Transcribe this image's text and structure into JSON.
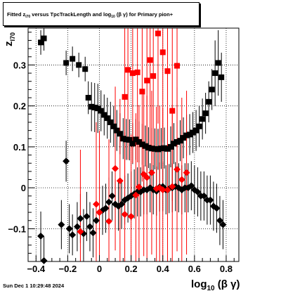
{
  "title": {
    "part1": "Fitted  z",
    "sub1": "I70",
    "part2": " versus TpcTrackLength and log",
    "sub2": "10",
    "part3": " (β  γ) for Primary pion+"
  },
  "footer": "Sun Dec  1 10:29:48 2024",
  "chart_data": {
    "type": "scatter",
    "xlabel_main": "log",
    "xlabel_sub": "10",
    "xlabel_tail": " (β γ)",
    "ylabel_main": "z",
    "ylabel_sub": "I70",
    "xlim": [
      -0.45,
      0.88
    ],
    "ylim": [
      -0.18,
      0.39
    ],
    "x_ticks": [
      -0.4,
      -0.2,
      0,
      0.2,
      0.4,
      0.6,
      0.8
    ],
    "x_tick_labels": [
      "−0.4",
      "−0.2",
      "0",
      "0.2",
      "0.4",
      "0.6",
      "0.8"
    ],
    "y_ticks": [
      -0.1,
      0,
      0.1,
      0.2,
      0.3
    ],
    "y_tick_labels": [
      "−0.1",
      "0",
      "0.1",
      "0.2",
      "0.3"
    ],
    "grid": true,
    "colors": {
      "primary": "#000000",
      "secondary": "#ff0000"
    },
    "series": [
      {
        "marker": "square",
        "color": "#000000",
        "x": [
          -0.37,
          -0.35,
          -0.21,
          -0.17,
          -0.13,
          -0.09,
          -0.07,
          -0.05,
          -0.03,
          -0.01,
          0.01,
          0.03,
          0.05,
          0.07,
          0.09,
          0.11,
          0.13,
          0.15,
          0.17,
          0.19,
          0.21,
          0.23,
          0.25,
          0.27,
          0.29,
          0.31,
          0.33,
          0.35,
          0.37,
          0.39,
          0.41,
          0.43,
          0.45,
          0.47,
          0.49,
          0.51,
          0.53,
          0.55,
          0.57,
          0.59,
          0.61,
          0.63,
          0.65,
          0.67,
          0.69,
          0.71,
          0.73,
          0.75,
          0.77
        ],
        "y": [
          0.355,
          0.365,
          0.305,
          0.315,
          0.3,
          0.29,
          0.22,
          0.198,
          0.196,
          0.194,
          0.188,
          0.178,
          0.17,
          0.16,
          0.15,
          0.14,
          0.132,
          0.12,
          0.118,
          0.117,
          0.108,
          0.118,
          0.112,
          0.106,
          0.102,
          0.098,
          0.096,
          0.095,
          0.094,
          0.096,
          0.097,
          0.095,
          0.1,
          0.108,
          0.112,
          0.115,
          0.122,
          0.128,
          0.13,
          0.135,
          0.14,
          0.15,
          0.168,
          0.182,
          0.21,
          0.24,
          0.28,
          0.305,
          0.27
        ],
        "yerr": [
          0.03,
          0.03,
          0.03,
          0.03,
          0.03,
          0.03,
          0.04,
          0.06,
          0.06,
          0.06,
          0.05,
          0.05,
          0.05,
          0.05,
          0.05,
          0.05,
          0.05,
          0.05,
          0.05,
          0.05,
          0.05,
          0.05,
          0.05,
          0.05,
          0.05,
          0.05,
          0.05,
          0.05,
          0.05,
          0.05,
          0.05,
          0.05,
          0.05,
          0.05,
          0.05,
          0.05,
          0.05,
          0.05,
          0.05,
          0.05,
          0.05,
          0.05,
          0.05,
          0.05,
          0.05,
          0.05,
          0.08,
          0.08,
          0.06
        ]
      },
      {
        "marker": "square",
        "color": "#ff0000",
        "x": [
          0.16,
          0.18,
          0.21,
          0.24,
          0.27,
          0.3,
          0.32,
          0.34,
          0.37,
          0.4,
          0.43,
          0.46,
          0.49
        ],
        "y": [
          0.222,
          0.288,
          0.28,
          0.282,
          0.235,
          0.262,
          0.312,
          0.273,
          0.377,
          0.331,
          0.285,
          0.188,
          0.298
        ],
        "yerr": [
          0.22,
          0.22,
          0.22,
          0.22,
          0.22,
          0.22,
          0.22,
          0.22,
          0.22,
          0.22,
          0.22,
          0.22,
          0.22
        ]
      },
      {
        "marker": "diamond",
        "color": "#000000",
        "x": [
          -0.37,
          -0.35,
          -0.24,
          -0.21,
          -0.19,
          -0.17,
          -0.14,
          -0.12,
          -0.1,
          -0.08,
          -0.06,
          -0.04,
          -0.02,
          0.0,
          0.02,
          0.04,
          0.06,
          0.08,
          0.1,
          0.12,
          0.14,
          0.16,
          0.18,
          0.2,
          0.22,
          0.24,
          0.26,
          0.28,
          0.3,
          0.32,
          0.34,
          0.36,
          0.38,
          0.4,
          0.42,
          0.44,
          0.46,
          0.48,
          0.5,
          0.52,
          0.54,
          0.56,
          0.58,
          0.6,
          0.62,
          0.64,
          0.66,
          0.68,
          0.7,
          0.72,
          0.74,
          0.76,
          0.78
        ],
        "y": [
          -0.118,
          -0.178,
          -0.09,
          0.065,
          -0.1,
          -0.115,
          -0.095,
          -0.075,
          -0.112,
          -0.07,
          -0.095,
          -0.11,
          -0.08,
          -0.06,
          -0.055,
          -0.05,
          -0.035,
          -0.02,
          -0.04,
          -0.045,
          -0.04,
          -0.03,
          -0.025,
          -0.02,
          -0.015,
          -0.01,
          -0.01,
          -0.005,
          -0.005,
          0.0,
          -0.005,
          -0.008,
          0.002,
          0.003,
          -0.005,
          -0.002,
          0.0,
          0.003,
          0.0,
          -0.005,
          0.0,
          0.0,
          0.005,
          -0.005,
          -0.01,
          -0.02,
          -0.02,
          -0.03,
          -0.03,
          -0.045,
          -0.05,
          -0.08,
          -0.09
        ],
        "yerr": [
          0.06,
          0.06,
          0.06,
          0.05,
          0.06,
          0.05,
          0.06,
          0.06,
          0.06,
          0.06,
          0.06,
          0.06,
          0.06,
          0.06,
          0.06,
          0.06,
          0.06,
          0.06,
          0.06,
          0.06,
          0.06,
          0.06,
          0.06,
          0.06,
          0.06,
          0.06,
          0.06,
          0.06,
          0.06,
          0.06,
          0.06,
          0.06,
          0.06,
          0.06,
          0.06,
          0.06,
          0.06,
          0.06,
          0.06,
          0.06,
          0.06,
          0.06,
          0.06,
          0.06,
          0.06,
          0.06,
          0.06,
          0.06,
          0.06,
          0.06,
          0.06,
          0.06,
          0.06
        ]
      },
      {
        "marker": "diamond",
        "color": "#ff0000",
        "x": [
          -0.12,
          -0.02,
          0.0,
          0.06,
          0.1,
          0.13,
          0.16,
          0.2,
          0.23,
          0.25,
          0.28,
          0.3,
          0.33,
          0.36,
          0.38,
          0.4,
          0.43,
          0.46,
          0.49,
          0.52,
          0.55
        ],
        "y": [
          -0.107,
          -0.04,
          -0.06,
          -0.082,
          0.047,
          0.017,
          -0.065,
          -0.07,
          -0.018,
          0.002,
          0.033,
          0.025,
          0.037,
          -0.002,
          0.0,
          -0.005,
          -0.005,
          0.003,
          0.045,
          0.02,
          0.037
        ],
        "yerr": [
          0.2,
          0.2,
          0.2,
          0.2,
          0.2,
          0.2,
          0.2,
          0.2,
          0.2,
          0.2,
          0.2,
          0.2,
          0.2,
          0.2,
          0.2,
          0.2,
          0.2,
          0.2,
          0.2,
          0.2,
          0.2
        ]
      }
    ]
  }
}
